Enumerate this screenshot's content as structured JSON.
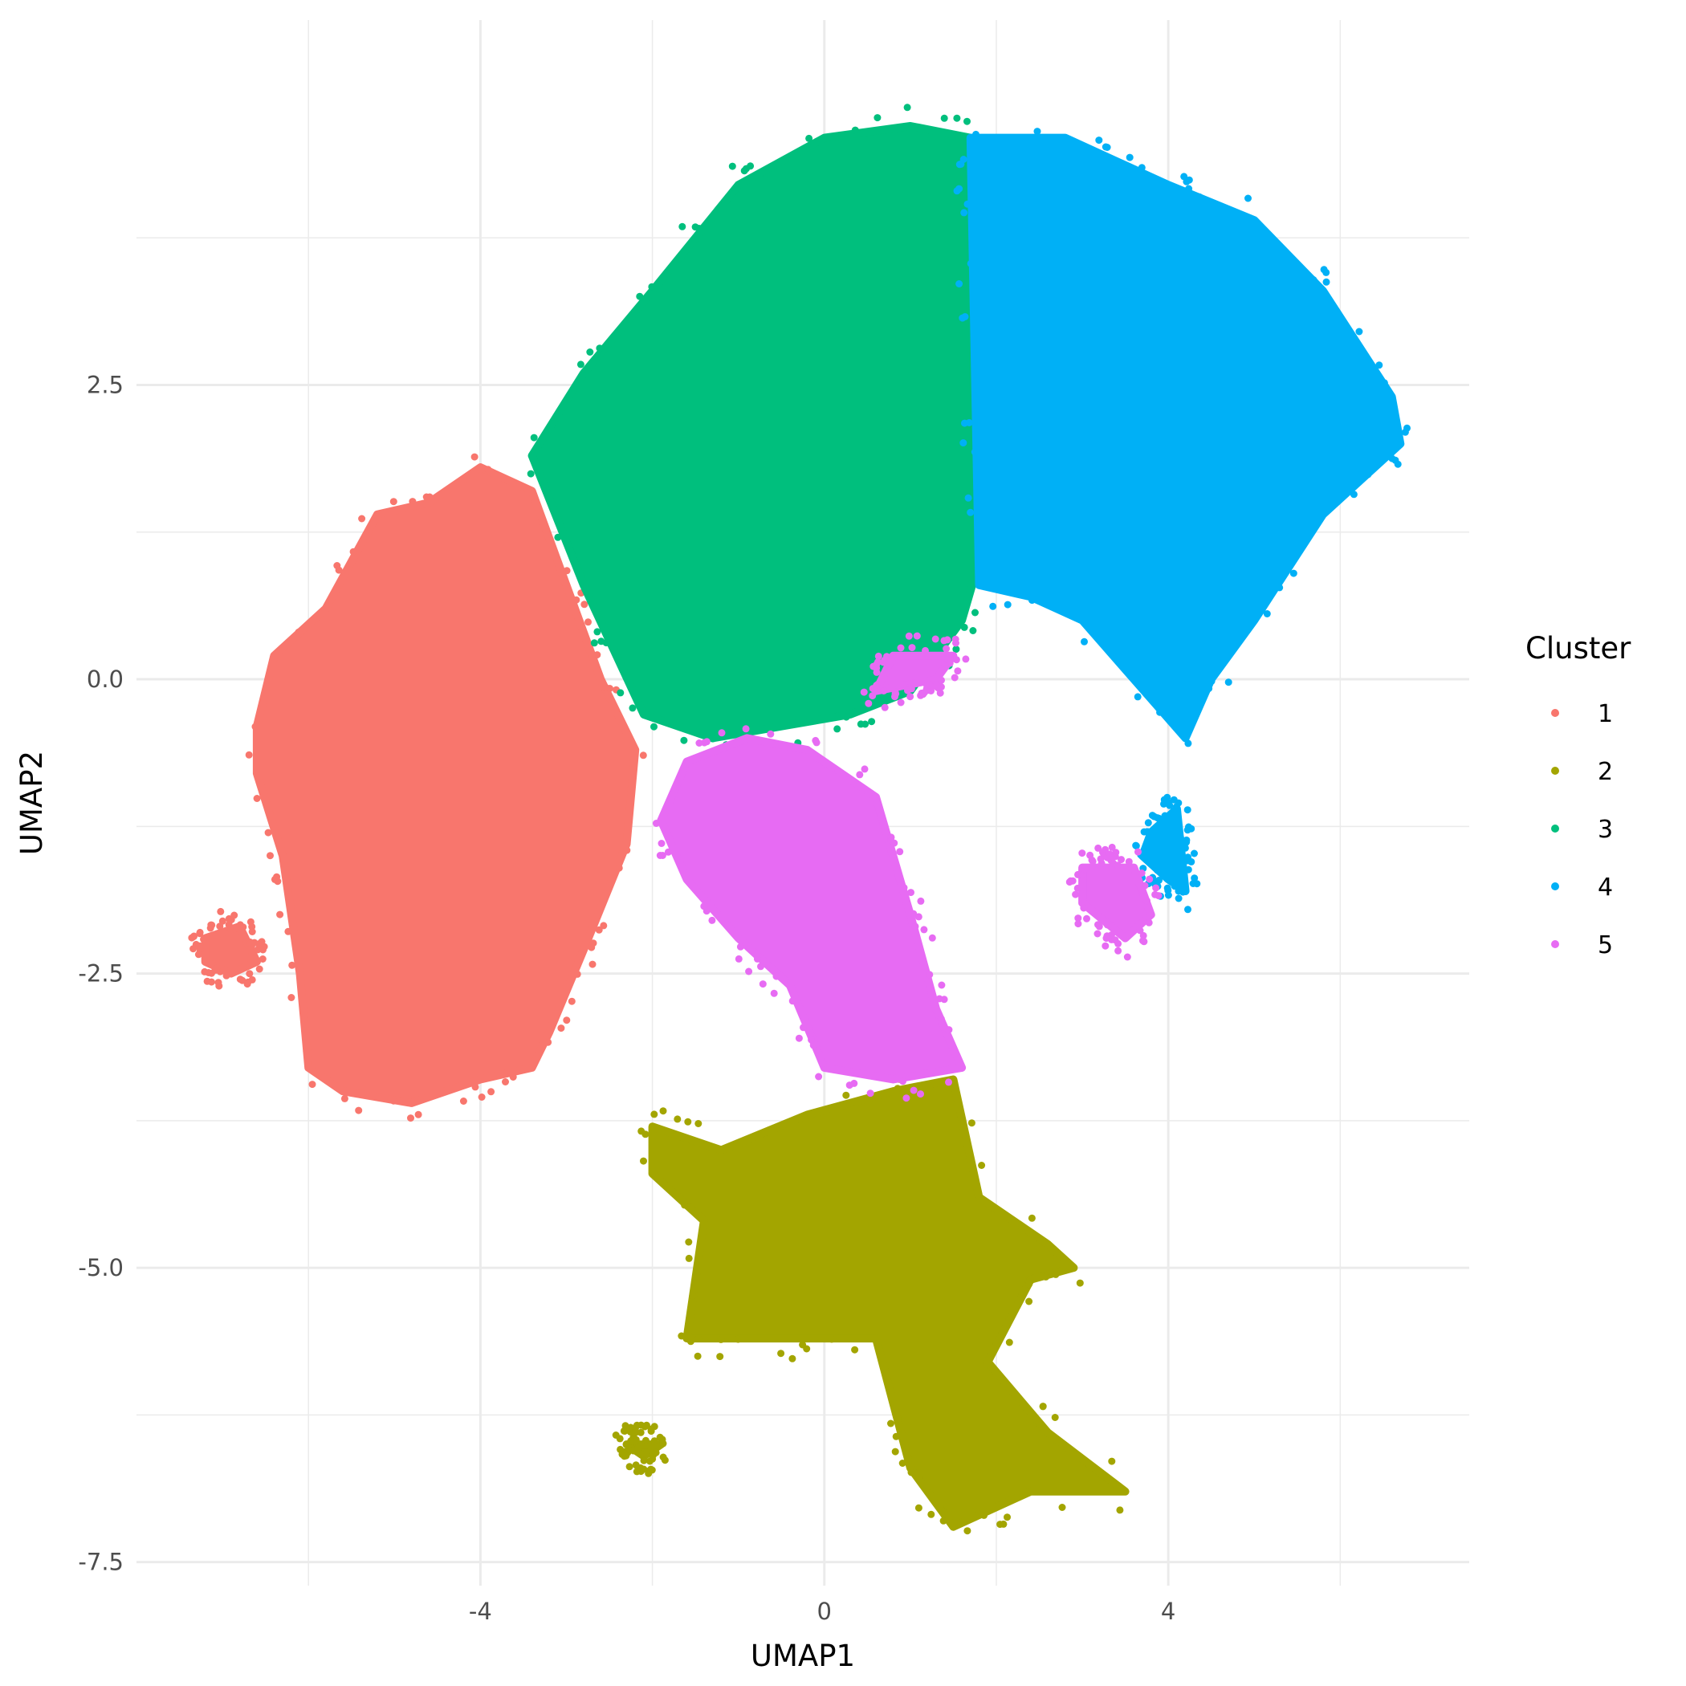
{
  "chart_data": {
    "type": "scatter",
    "title": "",
    "xlabel": "UMAP1",
    "ylabel": "UMAP2",
    "xlim": [
      -8,
      7.5
    ],
    "ylim": [
      -7.7,
      5.6
    ],
    "x_ticks": [
      -4,
      0,
      4
    ],
    "x_tick_labels": [
      "-4",
      "0",
      "4"
    ],
    "y_ticks": [
      2.5,
      0.0,
      -2.5,
      -5.0,
      -7.5
    ],
    "y_tick_labels": [
      "2.5",
      "0.0",
      "-2.5",
      "-5.0",
      "-7.5"
    ],
    "x_minor_gridlines": [
      -6,
      -2,
      2,
      6
    ],
    "y_minor_gridlines": [
      3.75,
      1.25,
      -1.25,
      -3.75,
      -6.25
    ],
    "grid": true,
    "legend": {
      "title": "Cluster",
      "position": "right",
      "entries": [
        "1",
        "2",
        "3",
        "4",
        "5"
      ]
    },
    "series": [
      {
        "name": "1",
        "color": "#F8766D",
        "regions": [
          {
            "x": [
              -6.4,
              -5.8,
              -5.2,
              -4.6,
              -4.0,
              -3.4,
              -2.6,
              -2.2,
              -2.3,
              -2.8,
              -3.2,
              -3.4,
              -4.0,
              -4.8,
              -5.6,
              -6.0,
              -6.1,
              -6.3,
              -6.6,
              -6.6
            ],
            "y": [
              0.2,
              0.6,
              1.4,
              1.5,
              1.8,
              1.6,
              0.0,
              -0.6,
              -1.4,
              -2.3,
              -3.0,
              -3.3,
              -3.4,
              -3.6,
              -3.5,
              -3.3,
              -2.5,
              -1.5,
              -0.8,
              -0.4
            ]
          },
          {
            "x": [
              -7.2,
              -6.8,
              -6.6,
              -6.9,
              -7.2
            ],
            "y": [
              -2.2,
              -2.1,
              -2.4,
              -2.5,
              -2.4
            ]
          }
        ]
      },
      {
        "name": "2",
        "color": "#A3A500",
        "regions": [
          {
            "x": [
              -2.0,
              -1.2,
              -0.2,
              0.8,
              1.5,
              1.8,
              2.6,
              2.9,
              2.4,
              1.9,
              2.6,
              3.5,
              2.4,
              1.5,
              1.0,
              0.6,
              -1.0,
              -1.6,
              -1.4,
              -2.0
            ],
            "y": [
              -3.8,
              -4.0,
              -3.7,
              -3.5,
              -3.4,
              -4.4,
              -4.8,
              -5.0,
              -5.1,
              -5.8,
              -6.4,
              -6.9,
              -6.9,
              -7.2,
              -6.7,
              -5.6,
              -5.6,
              -5.6,
              -4.6,
              -4.2
            ]
          },
          {
            "x": [
              -2.3,
              -1.9,
              -2.1
            ],
            "y": [
              -6.5,
              -6.5,
              -6.6
            ]
          }
        ]
      },
      {
        "name": "3",
        "color": "#00BF7D",
        "regions": [
          {
            "x": [
              -3.4,
              -2.8,
              -2.0,
              -1.0,
              0.0,
              1.0,
              1.7,
              1.8,
              1.8,
              1.6,
              1.0,
              0.3,
              -0.5,
              -1.3,
              -2.1,
              -2.8
            ],
            "y": [
              1.9,
              2.6,
              3.3,
              4.2,
              4.6,
              4.7,
              4.6,
              3.0,
              1.0,
              0.5,
              -0.1,
              -0.3,
              -0.4,
              -0.5,
              -0.3,
              0.8
            ]
          }
        ]
      },
      {
        "name": "4",
        "color": "#00B0F6",
        "regions": [
          {
            "x": [
              1.7,
              2.8,
              4.0,
              5.0,
              5.8,
              6.6,
              6.7,
              5.8,
              5.0,
              4.5,
              4.2,
              3.6,
              3.0,
              2.4,
              1.8
            ],
            "y": [
              4.6,
              4.6,
              4.2,
              3.9,
              3.3,
              2.4,
              2.0,
              1.4,
              0.5,
              0.0,
              -0.5,
              0.0,
              0.5,
              0.7,
              0.8
            ]
          },
          {
            "x": [
              3.8,
              4.1,
              4.2,
              4.0,
              3.7
            ],
            "y": [
              -1.3,
              -1.1,
              -1.8,
              -1.7,
              -1.5
            ]
          }
        ]
      },
      {
        "name": "5",
        "color": "#E76BF3",
        "regions": [
          {
            "x": [
              -1.6,
              -0.9,
              -0.2,
              0.6,
              1.0,
              1.3,
              1.6,
              0.8,
              0.0,
              -0.4,
              -1.0,
              -1.6,
              -1.9
            ],
            "y": [
              -0.7,
              -0.5,
              -0.6,
              -1.0,
              -2.0,
              -2.8,
              -3.3,
              -3.4,
              -3.3,
              -2.6,
              -2.2,
              -1.7,
              -1.2
            ]
          },
          {
            "x": [
              3.0,
              3.6,
              3.8,
              3.5,
              3.0
            ],
            "y": [
              -1.6,
              -1.6,
              -2.0,
              -2.2,
              -1.9
            ]
          },
          {
            "x": [
              0.8,
              1.5,
              1.3,
              0.6
            ],
            "y": [
              0.2,
              0.2,
              0.0,
              -0.1
            ]
          }
        ]
      }
    ]
  }
}
